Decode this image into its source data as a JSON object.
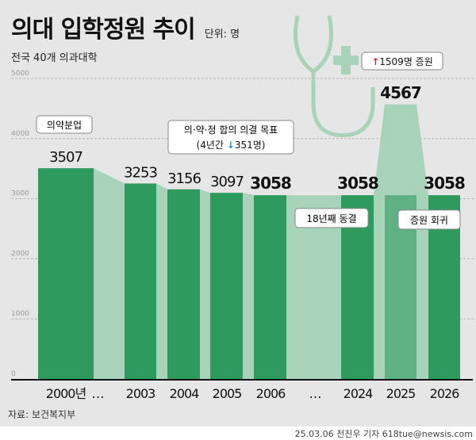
{
  "title": "의대 입학정원 추이",
  "unit": "단위: 명",
  "subtitle": "전국 40개 의과대학",
  "source": "자료: 보건복지부",
  "credit": "25.03.06 전진우 기자 618tue@newsis.com",
  "colors": {
    "bar": "#2f9a5e",
    "bar_light": "#a9d3b8",
    "background": "#e6e6e6",
    "accent_up": "#e0262a",
    "accent_down": "#2b8fd6"
  },
  "chart_data": {
    "type": "bar",
    "categories": [
      "2000년",
      "…",
      "2003",
      "2004",
      "2005",
      "2006",
      "…",
      "2024",
      "2025",
      "2026"
    ],
    "values": [
      3507,
      null,
      3253,
      3156,
      3097,
      3058,
      null,
      3058,
      4567,
      3058
    ],
    "value_labels": [
      "3507",
      "",
      "3253",
      "3156",
      "3097",
      "3058",
      "",
      "3058",
      "4567",
      "3058"
    ],
    "ylim": [
      0,
      5000
    ],
    "yticks": [
      "0",
      "1000",
      "2000",
      "3000",
      "4000",
      "5000"
    ],
    "grid": true,
    "annotations": {
      "a2000": "의약분업",
      "a2003_line1": "의·약·정 합의 의결 목표",
      "a2003_line2_pre": "(4년간 ",
      "a2003_arrow": "↓",
      "a2003_line2_post": "351명)",
      "a2024": "18년째 동결",
      "a2025_arrow": "↑",
      "a2025": "1509명 증원",
      "a2026": "증원 회귀"
    }
  }
}
